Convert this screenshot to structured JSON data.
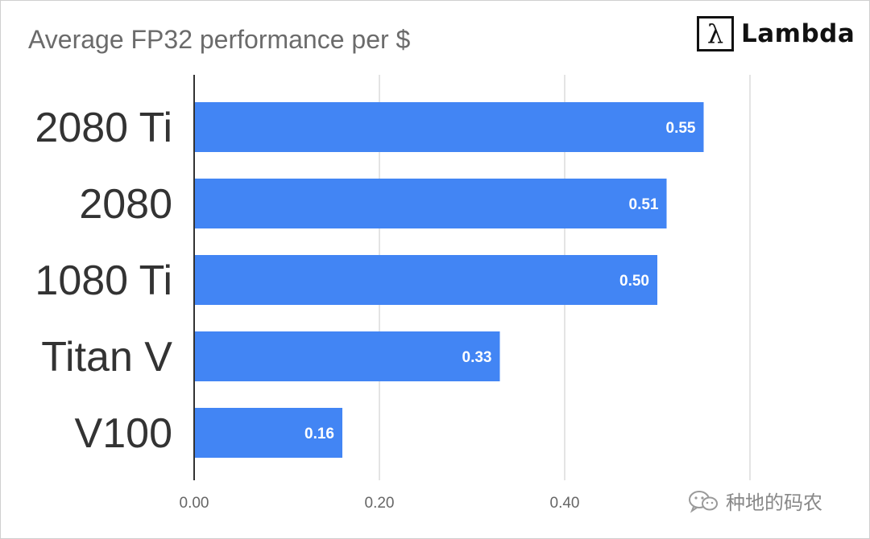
{
  "chart_data": {
    "type": "bar",
    "orientation": "horizontal",
    "title": "Average FP32 performance per $",
    "categories": [
      "2080 Ti",
      "2080",
      "1080 Ti",
      "Titan V",
      "V100"
    ],
    "values": [
      0.55,
      0.51,
      0.5,
      0.33,
      0.16
    ],
    "data_labels": [
      "0.55",
      "0.51",
      "0.50",
      "0.33",
      "0.16"
    ],
    "x_ticks": [
      "0.00",
      "0.20",
      "0.40"
    ],
    "xlim": [
      0,
      0.6
    ],
    "grid": true,
    "bar_color": "#4285f4"
  },
  "brand": {
    "glyph": "λ",
    "name": "Lambda"
  },
  "watermark": {
    "text": "种地的码农",
    "icon": "wechat-icon"
  },
  "colors": {
    "axis": "#333333",
    "grid": "#dcdcdc",
    "category_label": "#333333",
    "tick_label": "#666666",
    "data_label": "#ffffff"
  }
}
